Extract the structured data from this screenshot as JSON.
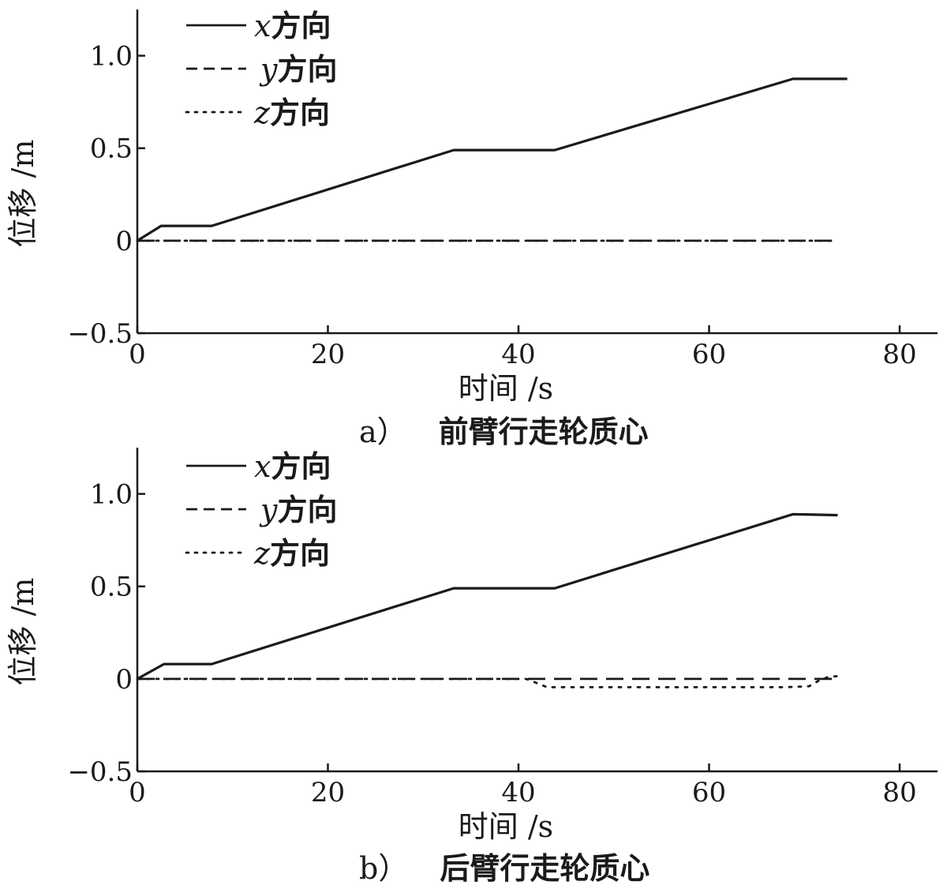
{
  "chart_data": [
    {
      "type": "line",
      "title": "",
      "caption_label": "a）",
      "caption": "前臂行走轮质心",
      "xlabel": "时间 /s",
      "ylabel": "位移 /m",
      "xlim": [
        0,
        83
      ],
      "ylim": [
        -0.5,
        1.25
      ],
      "xticks": [
        "0",
        "20",
        "40",
        "60",
        "80"
      ],
      "xtick_values": [
        0,
        20,
        40,
        60,
        80
      ],
      "yticks": [
        "−0.5",
        "0",
        "0.5",
        "1.0"
      ],
      "ytick_values": [
        -0.5,
        0,
        0.5,
        1.0
      ],
      "legend_position": "top-left",
      "series": [
        {
          "name": "x方向",
          "var": "x",
          "suffix": "方向",
          "style": "solid",
          "x": [
            0,
            2.5,
            7.8,
            33.2,
            43.8,
            68.8,
            74.5
          ],
          "y": [
            0,
            0.08,
            0.08,
            0.49,
            0.49,
            0.875,
            0.875
          ]
        },
        {
          "name": "y方向",
          "var": "y",
          "suffix": "方向",
          "style": "dashed",
          "x": [
            0,
            73
          ],
          "y": [
            0,
            0
          ]
        },
        {
          "name": "z方向",
          "var": "z",
          "suffix": "方向",
          "style": "dotted",
          "x": [
            0,
            73
          ],
          "y": [
            0,
            0
          ]
        }
      ]
    },
    {
      "type": "line",
      "title": "",
      "caption_label": "b）",
      "caption": "后臂行走轮质心",
      "xlabel": "时间 /s",
      "ylabel": "位移 /m",
      "xlim": [
        0,
        83
      ],
      "ylim": [
        -0.5,
        1.25
      ],
      "xticks": [
        "0",
        "20",
        "40",
        "60",
        "80"
      ],
      "xtick_values": [
        0,
        20,
        40,
        60,
        80
      ],
      "yticks": [
        "−0.5",
        "0",
        "0.5",
        "1.0"
      ],
      "ytick_values": [
        -0.5,
        0,
        0.5,
        1.0
      ],
      "legend_position": "top-left",
      "series": [
        {
          "name": "x方向",
          "var": "x",
          "suffix": "方向",
          "style": "solid",
          "x": [
            0,
            2.8,
            7.8,
            33.2,
            43.8,
            68.8,
            73.5
          ],
          "y": [
            0,
            0.08,
            0.08,
            0.49,
            0.49,
            0.89,
            0.885
          ]
        },
        {
          "name": "y方向",
          "var": "y",
          "suffix": "方向",
          "style": "dashed",
          "x": [
            0,
            73.5
          ],
          "y": [
            0,
            0
          ]
        },
        {
          "name": "z方向",
          "var": "z",
          "suffix": "方向",
          "style": "dotted",
          "x": [
            0,
            40.8,
            41.8,
            43,
            50,
            60,
            68,
            70.5,
            71.5,
            72.5,
            73.5
          ],
          "y": [
            0,
            0,
            -0.02,
            -0.045,
            -0.045,
            -0.045,
            -0.045,
            -0.04,
            -0.01,
            0.01,
            0.015
          ]
        }
      ]
    }
  ]
}
